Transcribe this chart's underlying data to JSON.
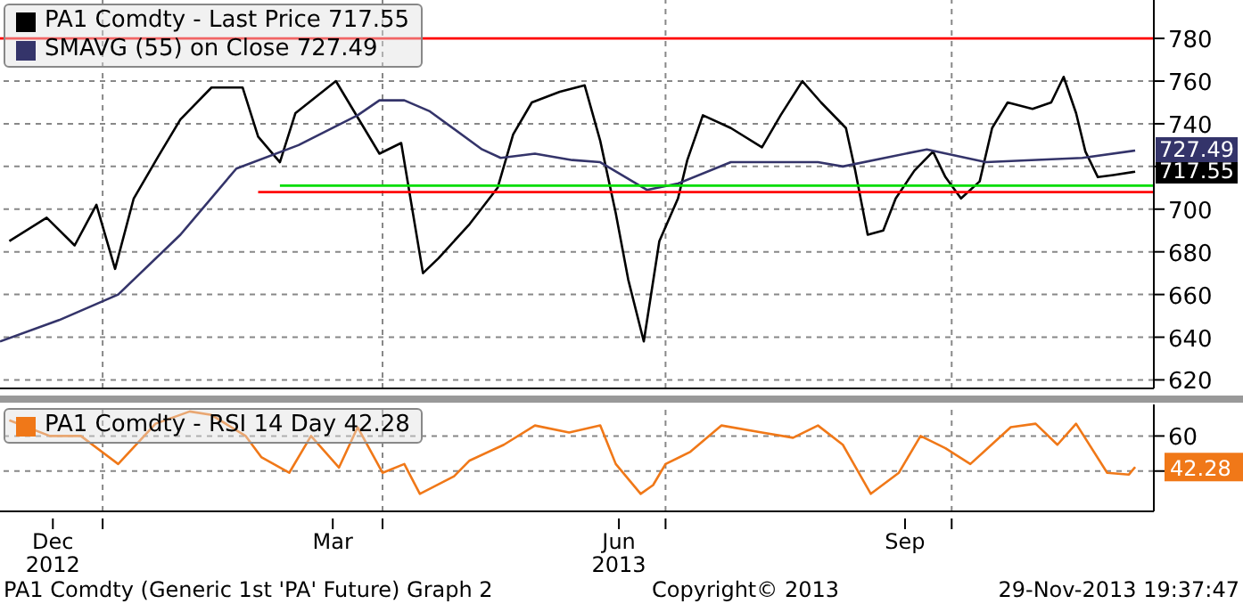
{
  "chart_data": [
    {
      "type": "line",
      "legend": "top left",
      "grid": true,
      "tick_labels": "y",
      "xlim": [
        "2012-11-29",
        "2013-12-05"
      ],
      "xticks": [
        {
          "value": "2013-01-01",
          "label": null
        },
        {
          "value": "2013-04-01",
          "label": null
        },
        {
          "value": "2013-07-01",
          "label": null
        },
        {
          "value": "2013-10-01",
          "label": null
        }
      ],
      "ylim": [
        616,
        798
      ],
      "yticks": [
        620,
        640,
        660,
        680,
        700,
        {
          "value": 720,
          "label": null
        },
        740,
        760,
        780
      ],
      "ref_lines": [
        {
          "axis": "y",
          "value": 780,
          "color": "#ff0000"
        }
      ],
      "annotations": [
        "717.55",
        "727.49"
      ],
      "series": [
        {
          "name": "PA1 Comdty - Last Price 717.55",
          "color": "#000000",
          "x": [
            "2012-12-02",
            "2012-12-14",
            "2012-12-23",
            "2012-12-30",
            "2013-01-05",
            "2013-01-11",
            "2013-01-19",
            "2013-01-26",
            "2013-02-05",
            "2013-02-15",
            "2013-02-20",
            "2013-02-27",
            "2013-03-04",
            "2013-03-17",
            "2013-03-31",
            "2013-04-07",
            "2013-04-14",
            "2013-04-19",
            "2013-04-29",
            "2013-05-08",
            "2013-05-13",
            "2013-05-19",
            "2013-05-28",
            "2013-06-05",
            "2013-06-10",
            "2013-06-15",
            "2013-06-19",
            "2013-06-24",
            "2013-06-29",
            "2013-07-05",
            "2013-07-08",
            "2013-07-13",
            "2013-07-22",
            "2013-08-01",
            "2013-08-07",
            "2013-08-14",
            "2013-08-20",
            "2013-08-28",
            "2013-08-31",
            "2013-09-04",
            "2013-09-09",
            "2013-09-13",
            "2013-09-19",
            "2013-09-25",
            "2013-09-29",
            "2013-10-04",
            "2013-10-10",
            "2013-10-14",
            "2013-10-19",
            "2013-10-27",
            "2013-11-02",
            "2013-11-06",
            "2013-11-10",
            "2013-11-13",
            "2013-11-17",
            "2013-11-22",
            "2013-11-29"
          ],
          "values": [
            685,
            696,
            683,
            702,
            672,
            705,
            725,
            742,
            757,
            757,
            734,
            722,
            745,
            760,
            726,
            731,
            670,
            677,
            693,
            710,
            735,
            750,
            755,
            758,
            732,
            698,
            667,
            638,
            685,
            705,
            723,
            744,
            738,
            729,
            744,
            760,
            750,
            738,
            718,
            688,
            690,
            705,
            718,
            727,
            715,
            705,
            713,
            738,
            750,
            747,
            750,
            762,
            745,
            727,
            715,
            716,
            717.55
          ]
        },
        {
          "name": "SMAVG (55) on Close 727.49",
          "color": "#34346a",
          "x": [
            "2012-11-29",
            "2012-12-18",
            "2013-01-06",
            "2013-01-26",
            "2013-02-13",
            "2013-03-05",
            "2013-03-24",
            "2013-03-31",
            "2013-04-08",
            "2013-04-16",
            "2013-05-03",
            "2013-05-09",
            "2013-05-20",
            "2013-06-01",
            "2013-06-10",
            "2013-06-25",
            "2013-07-05",
            "2013-07-22",
            "2013-08-19",
            "2013-08-27",
            "2013-09-23",
            "2013-10-12",
            "2013-11-12",
            "2013-11-29"
          ],
          "values": [
            638,
            648,
            660,
            688,
            719,
            730,
            744,
            751,
            751,
            746,
            728,
            724,
            726,
            723,
            722,
            709,
            712,
            722,
            722,
            720,
            728,
            722,
            724,
            727.49
          ]
        },
        {
          "color": "#ff0000",
          "x": [
            "2013-02-20",
            "2013-12-05"
          ],
          "values": [
            708,
            708
          ]
        },
        {
          "color": "#00dd00",
          "x": [
            "2013-02-27",
            "2013-12-05"
          ],
          "values": [
            711,
            711
          ]
        }
      ]
    },
    {
      "type": "line",
      "legend": "top left",
      "grid": true,
      "xlim": [
        "2012-11-29",
        "2013-12-05"
      ],
      "xticks": [
        {
          "value": "2012-12-16",
          "label": "Dec\n2012"
        },
        {
          "value": "2013-01-01",
          "label": null
        },
        {
          "value": "2013-03-16",
          "label": "Mar"
        },
        {
          "value": "2013-04-01",
          "label": null
        },
        {
          "value": "2013-06-16",
          "label": "Jun\n2013"
        },
        {
          "value": "2013-07-01",
          "label": null
        },
        {
          "value": "2013-09-16",
          "label": "Sep"
        },
        {
          "value": "2013-10-01",
          "label": null
        }
      ],
      "ylim": [
        17,
        78
      ],
      "yticks": [
        {
          "value": 40,
          "label": null
        },
        42.28,
        60
      ],
      "annotations": [
        "PA1 Comdty (Generic 1st 'PA' Future) Graph 2",
        "Copyright© 2013",
        "29-Nov-2013 19:37:47"
      ],
      "series": [
        {
          "name": "PA1 Comdty - RSI 14 Day 42.28",
          "color": "#f07818",
          "x": [
            "2012-12-02",
            "2012-12-15",
            "2012-12-25",
            "2013-01-06",
            "2013-01-18",
            "2013-01-29",
            "2013-02-05",
            "2013-02-16",
            "2013-02-21",
            "2013-03-02",
            "2013-03-09",
            "2013-03-18",
            "2013-03-24",
            "2013-04-01",
            "2013-04-08",
            "2013-04-13",
            "2013-04-24",
            "2013-04-29",
            "2013-05-10",
            "2013-05-20",
            "2013-05-31",
            "2013-06-10",
            "2013-06-15",
            "2013-06-23",
            "2013-06-27",
            "2013-07-01",
            "2013-07-09",
            "2013-07-19",
            "2013-08-01",
            "2013-08-11",
            "2013-08-19",
            "2013-08-27",
            "2013-09-05",
            "2013-09-14",
            "2013-09-21",
            "2013-09-29",
            "2013-10-07",
            "2013-10-20",
            "2013-10-28",
            "2013-11-04",
            "2013-11-10",
            "2013-11-20",
            "2013-11-27",
            "2013-11-29"
          ],
          "values": [
            69,
            60,
            60,
            44,
            67,
            74,
            72,
            60,
            48,
            39,
            60,
            42,
            65,
            39,
            44,
            27,
            37,
            46,
            55,
            66,
            62,
            66,
            44,
            27,
            32,
            44,
            51,
            66,
            62,
            59,
            66,
            55,
            27,
            39,
            60,
            53,
            44,
            65,
            67,
            55,
            67,
            39,
            38,
            42.28
          ]
        }
      ]
    }
  ]
}
